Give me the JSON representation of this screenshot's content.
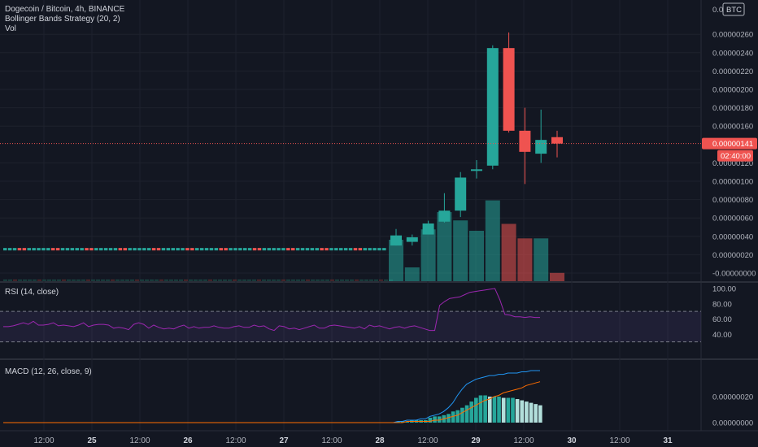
{
  "header": {
    "symbol": "Dogecoin / Bitcoin, 4h, BINANCE",
    "strategy": "Bollinger Bands Strategy (20, 2)",
    "volume_label": "Vol"
  },
  "currency_label": "BTC",
  "currency_label_prefix": "0.0",
  "price_axis": {
    "ticks": [
      "0.00000260",
      "0.00000240",
      "0.00000220",
      "0.00000200",
      "0.00000180",
      "0.00000160",
      "0.00000120",
      "0.00000100",
      "0.00000080",
      "0.00000060",
      "0.00000040",
      "0.00000020",
      "-0.00000000"
    ],
    "current_price": "0.00000141",
    "countdown": "02:40:00"
  },
  "rsi": {
    "label": "RSI (14, close)",
    "ticks": [
      "100.00",
      "80.00",
      "60.00",
      "40.00"
    ],
    "overbought": 70,
    "oversold": 30,
    "values": [
      50,
      50,
      51,
      53,
      55,
      53,
      57,
      52,
      52,
      53,
      55,
      51,
      52,
      51,
      50,
      52,
      55,
      50,
      52,
      53,
      53,
      52,
      48,
      49,
      48,
      46,
      53,
      55,
      53,
      48,
      52,
      49,
      47,
      48,
      47,
      50,
      52,
      48,
      50,
      48,
      49,
      49,
      51,
      49,
      48,
      48,
      50,
      51,
      49,
      49,
      52,
      50,
      51,
      47,
      45,
      51,
      50,
      47,
      48,
      46,
      48,
      50,
      52,
      48,
      48,
      51,
      52,
      51,
      50,
      49,
      48,
      50,
      47,
      52,
      50,
      51,
      49,
      47,
      49,
      50,
      48,
      50,
      51,
      49,
      47,
      45,
      45,
      78,
      83,
      87,
      88,
      89,
      92,
      95,
      96,
      97,
      98,
      99,
      100,
      85,
      66,
      65,
      63,
      63,
      62,
      63,
      62,
      62
    ]
  },
  "macd": {
    "label": "MACD (12, 26, close, 9)",
    "ticks": [
      "0.00000020",
      "0.00000000"
    ],
    "histogram": [
      0,
      0,
      0,
      0,
      0,
      0,
      0,
      0,
      0,
      0,
      0,
      0,
      0,
      0,
      0,
      0,
      0,
      0,
      0,
      0,
      0,
      0,
      0,
      0,
      0,
      0,
      0,
      0,
      0,
      0,
      0,
      0,
      0,
      0,
      0,
      0,
      0,
      0,
      0,
      0,
      0,
      0,
      0,
      0,
      0,
      0,
      0,
      0,
      0,
      0,
      0,
      0,
      0,
      0,
      0,
      0,
      0,
      0,
      0,
      0,
      0,
      0,
      0,
      0,
      0,
      0,
      0,
      0,
      0,
      0,
      0,
      0,
      0,
      0,
      0,
      0,
      0,
      0,
      0,
      0,
      0,
      0,
      0,
      0,
      0,
      0,
      0.01,
      0.01,
      0.01,
      0.02,
      0.02,
      0.02,
      0.02,
      0.04,
      0.05,
      0.05,
      0.06,
      0.07,
      0.09,
      0.1,
      0.12,
      0.14,
      0.17,
      0.2,
      0.22,
      0.22,
      0.21,
      0.21,
      0.21,
      0.2,
      0.2,
      0.2,
      0.19,
      0.18,
      0.17,
      0.16,
      0.15,
      0.14
    ],
    "macd_line": [
      0,
      0,
      0,
      0,
      0,
      0,
      0,
      0,
      0,
      0,
      0,
      0,
      0,
      0,
      0,
      0,
      0,
      0,
      0,
      0,
      0,
      0,
      0,
      0,
      0,
      0,
      0,
      0,
      0,
      0,
      0,
      0,
      0,
      0,
      0,
      0,
      0,
      0,
      0,
      0,
      0,
      0,
      0,
      0,
      0,
      0,
      0,
      0,
      0,
      0,
      0,
      0,
      0,
      0,
      0,
      0,
      0,
      0,
      0,
      0,
      0,
      0,
      0,
      0,
      0,
      0,
      0,
      0,
      0,
      0,
      0,
      0,
      0,
      0,
      0,
      0,
      0,
      0,
      0,
      0,
      0,
      0,
      0,
      0,
      0,
      0,
      0.01,
      0.01,
      0.02,
      0.02,
      0.02,
      0.03,
      0.03,
      0.05,
      0.06,
      0.07,
      0.09,
      0.12,
      0.16,
      0.22,
      0.27,
      0.31,
      0.33,
      0.35,
      0.36,
      0.37,
      0.38,
      0.38,
      0.39,
      0.39,
      0.4,
      0.4,
      0.4,
      0.41,
      0.41,
      0.42,
      0.42,
      0.42
    ],
    "signal_line": [
      0,
      0,
      0,
      0,
      0,
      0,
      0,
      0,
      0,
      0,
      0,
      0,
      0,
      0,
      0,
      0,
      0,
      0,
      0,
      0,
      0,
      0,
      0,
      0,
      0,
      0,
      0,
      0,
      0,
      0,
      0,
      0,
      0,
      0,
      0,
      0,
      0,
      0,
      0,
      0,
      0,
      0,
      0,
      0,
      0,
      0,
      0,
      0,
      0,
      0,
      0,
      0,
      0,
      0,
      0,
      0,
      0,
      0,
      0,
      0,
      0,
      0,
      0,
      0,
      0,
      0,
      0,
      0,
      0,
      0,
      0,
      0,
      0,
      0,
      0,
      0,
      0,
      0,
      0,
      0,
      0,
      0,
      0,
      0,
      0,
      0,
      0,
      0,
      0.01,
      0.01,
      0.01,
      0.01,
      0.01,
      0.01,
      0.02,
      0.02,
      0.03,
      0.04,
      0.05,
      0.06,
      0.08,
      0.1,
      0.12,
      0.14,
      0.16,
      0.18,
      0.19,
      0.21,
      0.22,
      0.24,
      0.25,
      0.26,
      0.27,
      0.28,
      0.3,
      0.31,
      0.32,
      0.33
    ]
  },
  "time_axis": [
    "12:00",
    "25",
    "12:00",
    "26",
    "12:00",
    "27",
    "12:00",
    "28",
    "12:00",
    "29",
    "12:00",
    "30",
    "12:00",
    "31"
  ],
  "colors": {
    "up": "#26a69a",
    "down": "#ef5350",
    "rsi_line": "#9c27b0",
    "macd_line": "#2196f3",
    "signal_line": "#ff6d00"
  },
  "chart_data": {
    "type": "candlestick",
    "symbol": "Dogecoin / Bitcoin",
    "interval": "4h",
    "exchange": "BINANCE",
    "unit": "BTC",
    "x_axis_ticks": [
      "12:00",
      "25",
      "12:00",
      "26",
      "12:00",
      "27",
      "12:00",
      "28",
      "12:00",
      "29",
      "12:00",
      "30",
      "12:00",
      "31"
    ],
    "y_axis_ticks": [
      "0.00000260",
      "0.00000240",
      "0.00000220",
      "0.00000200",
      "0.00000180",
      "0.00000160",
      "0.00000120",
      "0.00000100",
      "0.00000080",
      "0.00000060",
      "0.00000040",
      "0.00000020",
      "-0.00000000"
    ],
    "flat_prefix": {
      "bars": 80,
      "price": 2.6e-07
    },
    "candles": [
      {
        "o": 3e-07,
        "h": 4.8e-07,
        "l": 3e-07,
        "c": 4.1e-07
      },
      {
        "o": 3.4e-07,
        "h": 4.2e-07,
        "l": 3e-07,
        "c": 3.9e-07
      },
      {
        "o": 4.2e-07,
        "h": 5.7e-07,
        "l": 4.2e-07,
        "c": 5.4e-07
      },
      {
        "o": 5.6e-07,
        "h": 8.7e-07,
        "l": 5.5e-07,
        "c": 6.8e-07
      },
      {
        "o": 6.8e-07,
        "h": 1.1e-06,
        "l": 6.1e-07,
        "c": 1.04e-06
      },
      {
        "o": 1.13e-06,
        "h": 1.23e-06,
        "l": 1.03e-06,
        "c": 1.13e-06
      },
      {
        "o": 1.17e-06,
        "h": 2.48e-06,
        "l": 1.13e-06,
        "c": 2.45e-06
      },
      {
        "o": 2.45e-06,
        "h": 2.62e-06,
        "l": 1.53e-06,
        "c": 1.55e-06
      },
      {
        "o": 1.55e-06,
        "h": 1.8e-06,
        "l": 9.7e-07,
        "c": 1.32e-06
      },
      {
        "o": 1.3e-06,
        "h": 1.78e-06,
        "l": 1.2e-06,
        "c": 1.45e-06
      },
      {
        "o": 1.48e-06,
        "h": 1.55e-06,
        "l": 1.26e-06,
        "c": 1.41e-06
      }
    ],
    "volume_recent": [
      {
        "v": 0.6,
        "up": true
      },
      {
        "v": 0.2,
        "up": true
      },
      {
        "v": 0.75,
        "up": true
      },
      {
        "v": 1.0,
        "up": true
      },
      {
        "v": 0.88,
        "up": true
      },
      {
        "v": 0.73,
        "up": true
      },
      {
        "v": 1.17,
        "up": true
      },
      {
        "v": 0.83,
        "up": false
      },
      {
        "v": 0.62,
        "up": false
      },
      {
        "v": 0.62,
        "up": true
      },
      {
        "v": 0.12,
        "up": false
      }
    ],
    "current_price": 1.41e-06
  }
}
